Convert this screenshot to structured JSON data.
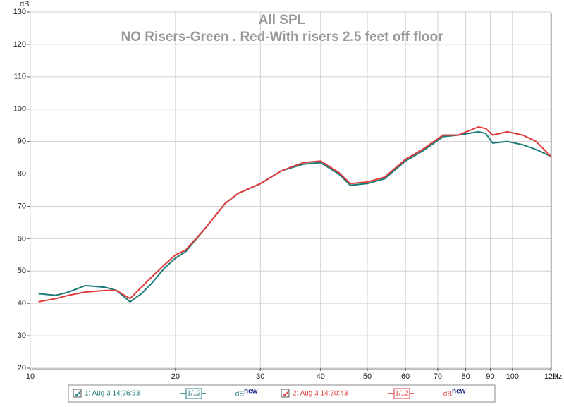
{
  "chart_data": {
    "type": "line",
    "title": "All SPL",
    "subtitle": "NO Risers-Green . Red-With risers 2.5 feet off floor",
    "y_unit": "dB",
    "x_unit": "Hz",
    "log_x": true,
    "grid": true,
    "x": [
      10.4,
      11.3,
      12,
      13,
      14.3,
      15.1,
      16.1,
      17,
      17.8,
      19,
      20,
      21,
      23,
      25.4,
      27,
      30,
      33.2,
      36.8,
      40,
      43.6,
      46.1,
      50,
      54.3,
      60,
      65,
      71.8,
      77.2,
      85,
      88,
      91,
      97.6,
      105,
      112,
      120
    ],
    "series": [
      {
        "name": "1: Aug 3 14:26:33",
        "color": "#1a7a78",
        "smoothing": "1/12",
        "units": "dB",
        "units_tag": "new",
        "values": [
          43,
          42.5,
          43.5,
          45.5,
          45,
          44,
          40.5,
          43,
          46,
          51,
          54,
          56,
          63,
          71,
          74,
          77,
          81,
          83,
          83.5,
          80,
          76.5,
          77,
          78.5,
          84,
          87,
          91.5,
          92,
          93,
          92.5,
          89.5,
          90,
          89,
          87.5,
          85.5
        ]
      },
      {
        "name": "2: Aug 3 14:30:43",
        "color": "#e03a3a",
        "smoothing": "1/12",
        "units": "dB",
        "units_tag": "new",
        "values": [
          40.5,
          41.5,
          42.5,
          43.5,
          44,
          44,
          41.5,
          45,
          48,
          52,
          55,
          56.5,
          63,
          71,
          74,
          77,
          81,
          83.5,
          84,
          80.5,
          77,
          77.5,
          79,
          84.5,
          87.5,
          92,
          92,
          94.5,
          94,
          92,
          93,
          92,
          90,
          85.5
        ]
      }
    ],
    "xlim": [
      10,
      120
    ],
    "ylim": [
      20,
      130
    ],
    "xticks": [
      10,
      20,
      30,
      40,
      50,
      60,
      70,
      80,
      90,
      100,
      120
    ],
    "yticks": [
      20,
      30,
      40,
      50,
      60,
      70,
      80,
      90,
      100,
      110,
      120,
      130
    ]
  }
}
